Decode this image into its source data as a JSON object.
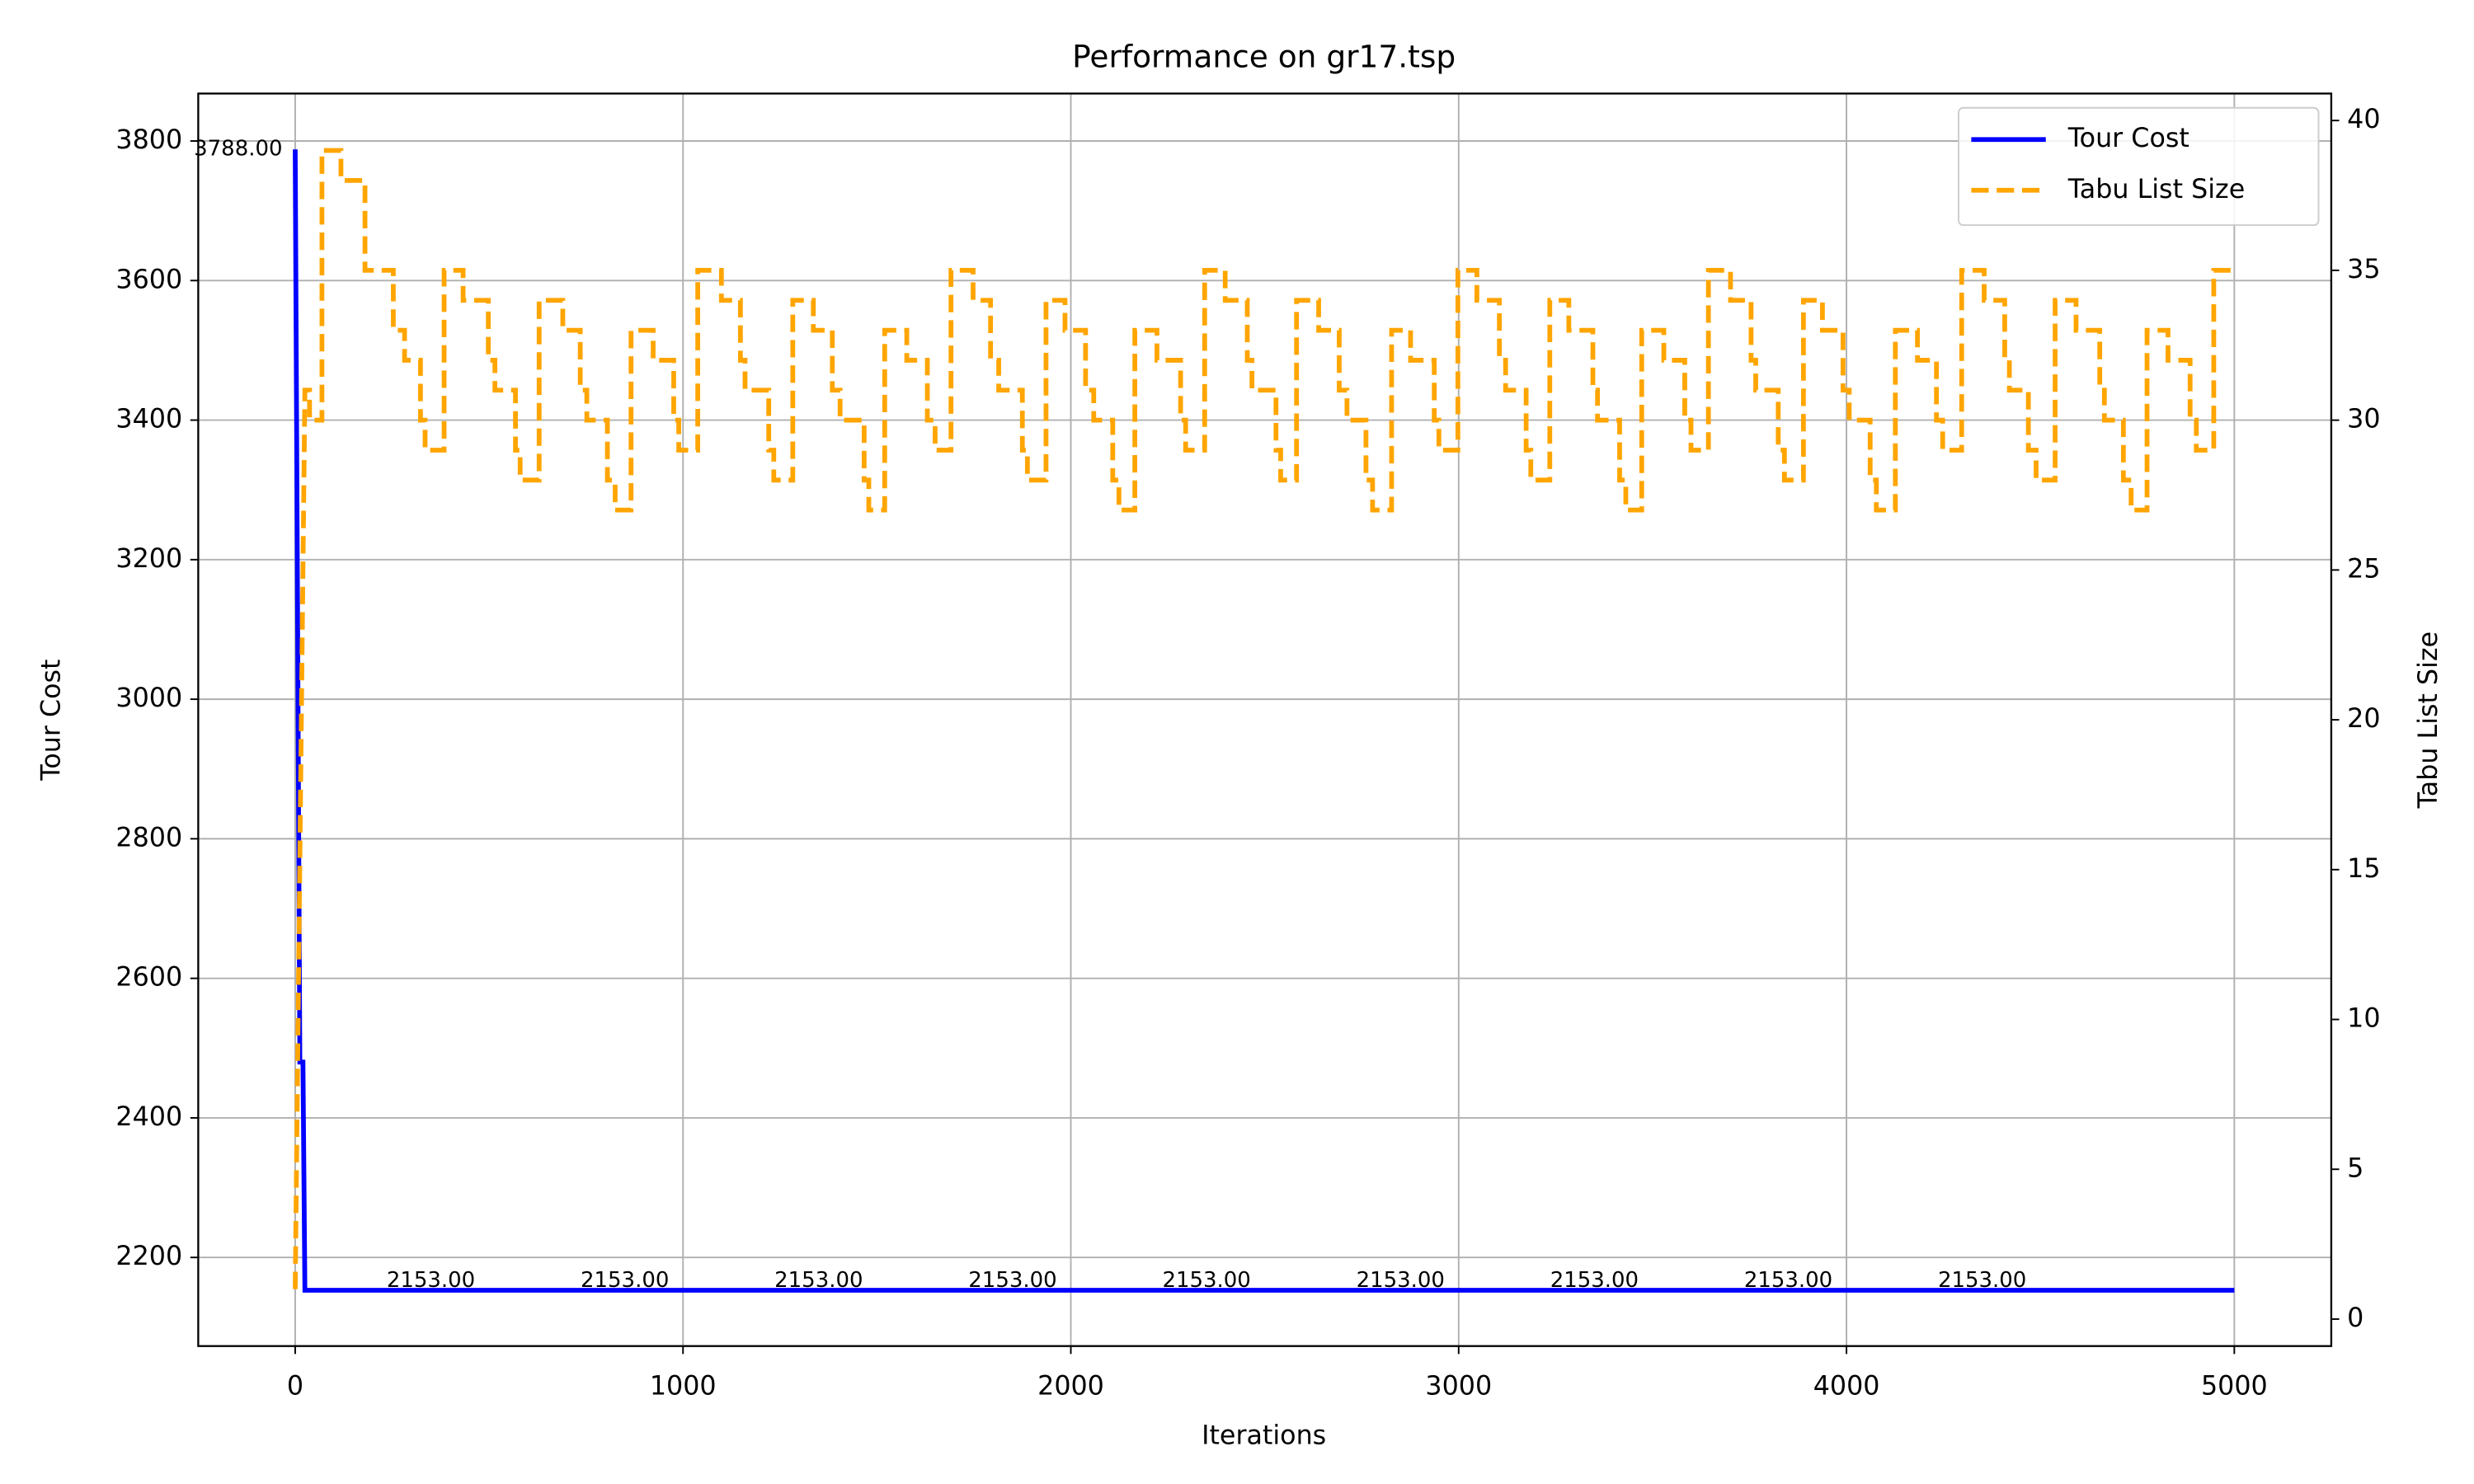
{
  "chart_data": {
    "type": "line",
    "title": "Performance on gr17.tsp",
    "x_label": "Iterations",
    "y_label": "Tour Cost",
    "y2_label": "Tabu List Size",
    "xlim": [
      -250,
      5250
    ],
    "xticks": [
      0,
      1000,
      2000,
      3000,
      4000,
      5000
    ],
    "ylim": [
      2073,
      3868
    ],
    "yticks": [
      2200,
      2400,
      2600,
      2800,
      3000,
      3200,
      3400,
      3600,
      3800
    ],
    "y2lim": [
      -0.9,
      40.9
    ],
    "y2ticks": [
      0,
      5,
      10,
      15,
      20,
      25,
      30,
      35,
      40
    ],
    "grid": true,
    "legend": "upper right",
    "series": [
      {
        "name": "Tour Cost",
        "color": "#0000ff",
        "axis": "y",
        "linestyle": "solid",
        "x": [
          0,
          12,
          20,
          25,
          5000
        ],
        "values": [
          3788,
          2480,
          2480,
          2153,
          2153
        ]
      },
      {
        "name": "Tabu List Size",
        "color": "#ffa500",
        "axis": "y2",
        "linestyle": "dashed",
        "x": [
          0,
          25,
          37,
          37,
          69,
          69,
          118,
          118,
          180,
          180,
          253,
          253,
          282,
          282,
          323,
          323,
          335,
          335,
          384,
          384,
          433,
          433,
          498,
          498,
          515,
          515,
          568,
          568,
          580,
          580,
          629,
          629,
          690,
          690,
          735,
          735,
          752,
          752,
          805,
          805,
          825,
          825,
          866,
          866,
          923,
          923,
          976,
          976,
          989,
          989,
          1038,
          1038,
          1099,
          1099,
          1148,
          1148,
          1160,
          1160,
          1221,
          1221,
          1234,
          1234,
          1283,
          1283,
          1336,
          1336,
          1385,
          1385,
          1405,
          1405,
          1467,
          1467,
          1479,
          1479,
          1520,
          1520,
          1577,
          1577,
          1630,
          1630,
          1650,
          1650,
          1691,
          1691,
          1748,
          1748,
          1793,
          1793,
          1814,
          1814,
          1875,
          1875,
          1888,
          1888,
          1936,
          1936,
          1985,
          1985,
          2038,
          2038,
          2059,
          2059,
          2108,
          2108,
          2124,
          2124,
          2165,
          2165,
          2222,
          2222,
          2283,
          2283,
          2296,
          2296,
          2345,
          2345,
          2398,
          2398,
          2455,
          2455,
          2467,
          2467,
          2529,
          2529,
          2541,
          2541,
          2582,
          2582,
          2639,
          2639,
          2692,
          2692,
          2712,
          2712,
          2761,
          2761,
          2778,
          2778,
          2827,
          2827,
          2876,
          2876,
          2937,
          2937,
          2949,
          2949,
          2998,
          2998,
          3047,
          3047,
          3105,
          3105,
          3121,
          3121,
          3174,
          3174,
          3186,
          3186,
          3235,
          3235,
          3284,
          3284,
          3346,
          3346,
          3358,
          3358,
          3415,
          3415,
          3431,
          3431,
          3472,
          3472,
          3529,
          3529,
          3583,
          3583,
          3599,
          3599,
          3644,
          3644,
          3701,
          3701,
          3754,
          3754,
          3766,
          3766,
          3824,
          3824,
          3840,
          3840,
          3889,
          3889,
          3938,
          3938,
          3991,
          3991,
          4007,
          4007,
          4061,
          4061,
          4077,
          4077,
          4126,
          4126,
          4183,
          4183,
          4232,
          4232,
          4248,
          4248,
          4297,
          4297,
          4355,
          4355,
          4408,
          4408,
          4420,
          4420,
          4469,
          4469,
          4489,
          4489,
          4538,
          4538,
          4592,
          4592,
          4653,
          4653,
          4665,
          4665,
          4714,
          4714,
          4734,
          4734,
          4775,
          4775,
          4829,
          4829,
          4886,
          4886,
          4902,
          4902,
          4947,
          4947,
          5000
        ],
        "values": [
          1,
          31,
          31,
          30,
          30,
          39,
          39,
          38,
          38,
          35,
          35,
          33,
          33,
          32,
          32,
          30,
          30,
          29,
          29,
          35,
          35,
          34,
          34,
          32,
          32,
          31,
          31,
          29,
          29,
          28,
          28,
          34,
          34,
          33,
          33,
          31,
          31,
          30,
          30,
          28,
          28,
          27,
          27,
          33,
          33,
          32,
          32,
          30,
          30,
          29,
          29,
          35,
          35,
          34,
          34,
          32,
          32,
          31,
          31,
          29,
          29,
          28,
          28,
          34,
          34,
          33,
          33,
          31,
          31,
          30,
          30,
          28,
          28,
          27,
          27,
          33,
          33,
          32,
          32,
          30,
          30,
          29,
          29,
          35,
          35,
          34,
          34,
          32,
          32,
          31,
          31,
          29,
          29,
          28,
          28,
          34,
          34,
          33,
          33,
          31,
          31,
          30,
          30,
          28,
          28,
          27,
          27,
          33,
          33,
          32,
          32,
          30,
          30,
          29,
          29,
          35,
          35,
          34,
          34,
          32,
          32,
          31,
          31,
          29,
          29,
          28,
          28,
          34,
          34,
          33,
          33,
          31,
          31,
          30,
          30,
          28,
          28,
          27,
          27,
          33,
          33,
          32,
          32,
          30,
          30,
          29,
          29,
          35,
          35,
          34,
          34,
          32,
          32,
          31,
          31,
          29,
          29,
          28,
          28,
          34,
          34,
          33,
          33,
          31,
          31,
          30,
          30,
          28,
          28,
          27,
          27,
          33,
          33,
          32,
          32,
          30,
          30,
          29,
          29,
          35,
          35,
          34,
          34,
          32,
          32,
          31,
          31,
          29,
          29,
          28,
          28,
          34,
          34,
          33,
          33,
          31,
          31,
          30,
          30,
          28,
          28,
          27,
          27,
          33,
          33,
          32,
          32,
          30,
          30,
          29,
          29,
          35,
          35,
          34,
          34,
          32,
          32,
          31,
          31,
          29,
          29,
          28,
          28,
          34,
          34,
          33,
          33,
          31,
          31,
          30,
          30,
          28,
          28,
          27,
          27,
          33,
          33,
          32,
          32,
          30,
          30,
          29,
          29,
          35,
          35
        ]
      }
    ],
    "annotations": [
      {
        "text": "3788.00",
        "x": -147,
        "y": 3788
      },
      {
        "text": "2153.00",
        "x": 350,
        "y": 2153
      },
      {
        "text": "2153.00",
        "x": 850,
        "y": 2153
      },
      {
        "text": "2153.00",
        "x": 1350,
        "y": 2153
      },
      {
        "text": "2153.00",
        "x": 1850,
        "y": 2153
      },
      {
        "text": "2153.00",
        "x": 2350,
        "y": 2153
      },
      {
        "text": "2153.00",
        "x": 2850,
        "y": 2153
      },
      {
        "text": "2153.00",
        "x": 3350,
        "y": 2153
      },
      {
        "text": "2153.00",
        "x": 3850,
        "y": 2153
      },
      {
        "text": "2153.00",
        "x": 4350,
        "y": 2153
      }
    ]
  }
}
